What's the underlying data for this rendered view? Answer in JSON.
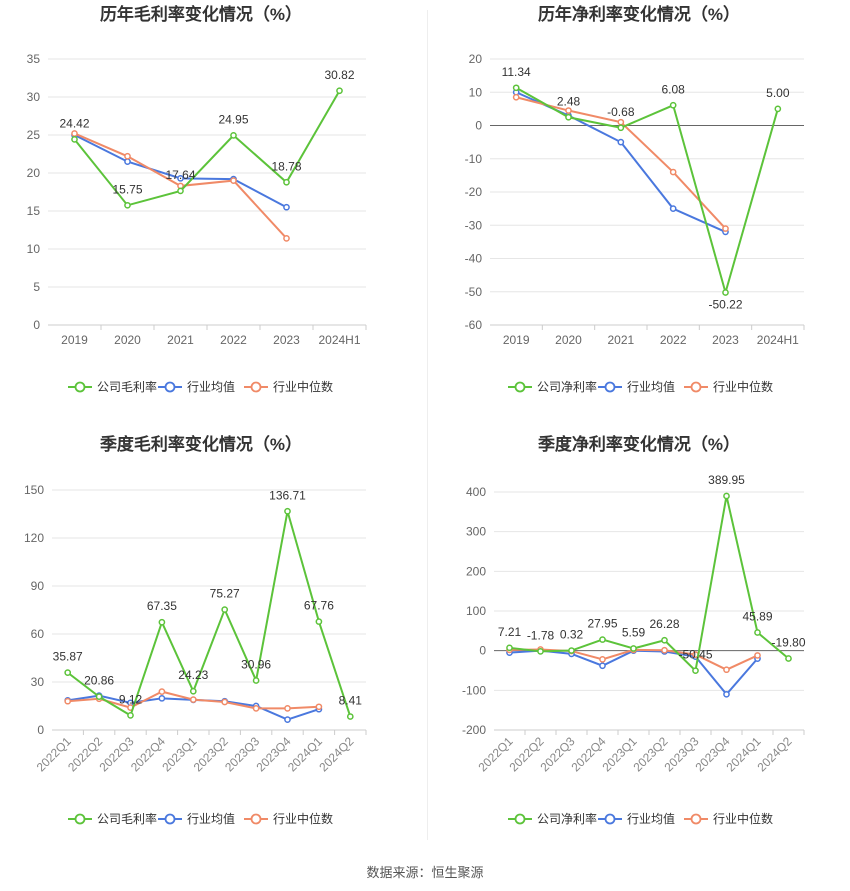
{
  "source": "数据来源：恒生聚源",
  "colors": {
    "company": "#5cc33a",
    "avg": "#4a78de",
    "median": "#f08a67"
  },
  "chart_data": [
    {
      "type": "line",
      "title": "历年毛利率变化情况（%）",
      "categories": [
        "2019",
        "2020",
        "2021",
        "2022",
        "2023",
        "2024H1"
      ],
      "ylim": [
        0,
        35
      ],
      "yticks": [
        0,
        5,
        10,
        15,
        20,
        25,
        30,
        35
      ],
      "xlabel": "",
      "ylabel": "",
      "legend_position": "bottom-center",
      "series": [
        {
          "name": "公司毛利率",
          "role": "company",
          "values": [
            24.42,
            15.75,
            17.64,
            24.95,
            18.78,
            30.82
          ],
          "labels": [
            "24.42",
            "15.75",
            "17.64",
            "24.95",
            "18.78",
            "30.82"
          ]
        },
        {
          "name": "行业均值",
          "role": "avg",
          "values": [
            25.0,
            21.5,
            19.3,
            19.2,
            15.5,
            null
          ]
        },
        {
          "name": "行业中位数",
          "role": "median",
          "values": [
            25.2,
            22.2,
            18.3,
            19.0,
            11.4,
            null
          ]
        }
      ]
    },
    {
      "type": "line",
      "title": "历年净利率变化情况（%）",
      "categories": [
        "2019",
        "2020",
        "2021",
        "2022",
        "2023",
        "2024H1"
      ],
      "ylim": [
        -60,
        20
      ],
      "yticks": [
        -60,
        -50,
        -40,
        -30,
        -20,
        -10,
        0,
        10,
        20
      ],
      "xlabel": "",
      "ylabel": "",
      "legend_position": "bottom-center",
      "series": [
        {
          "name": "公司净利率",
          "role": "company",
          "values": [
            11.34,
            2.48,
            -0.68,
            6.08,
            -50.22,
            5.0
          ],
          "labels": [
            "11.34",
            "2.48",
            "-0.68",
            "6.08",
            "-50.22",
            "5.00"
          ]
        },
        {
          "name": "行业均值",
          "role": "avg",
          "values": [
            10.0,
            3.0,
            -5.0,
            -25.0,
            -32.0,
            null
          ]
        },
        {
          "name": "行业中位数",
          "role": "median",
          "values": [
            8.5,
            4.5,
            1.0,
            -14.0,
            -31.0,
            null
          ]
        }
      ]
    },
    {
      "type": "line",
      "title": "季度毛利率变化情况（%）",
      "categories": [
        "2022Q1",
        "2022Q2",
        "2022Q3",
        "2022Q4",
        "2023Q1",
        "2023Q2",
        "2023Q3",
        "2023Q4",
        "2024Q1",
        "2024Q2"
      ],
      "ylim": [
        0,
        150
      ],
      "yticks": [
        0,
        30,
        60,
        90,
        120,
        150
      ],
      "xlabel": "",
      "ylabel": "",
      "legend_position": "bottom-center",
      "series": [
        {
          "name": "公司毛利率",
          "role": "company",
          "values": [
            35.87,
            20.86,
            9.12,
            67.35,
            24.23,
            75.27,
            30.96,
            136.71,
            67.76,
            8.41
          ],
          "labels": [
            "35.87",
            "20.86",
            "9.12",
            "67.35",
            "24.23",
            "75.27",
            "30.96",
            "136.71",
            "67.76",
            "8.41"
          ]
        },
        {
          "name": "行业均值",
          "role": "avg",
          "values": [
            18.5,
            21.5,
            17.0,
            19.8,
            18.8,
            18.0,
            15.0,
            6.5,
            13.0,
            null
          ]
        },
        {
          "name": "行业中位数",
          "role": "median",
          "values": [
            18.0,
            19.5,
            14.0,
            24.0,
            19.0,
            17.5,
            13.5,
            13.5,
            14.5,
            null
          ]
        }
      ]
    },
    {
      "type": "line",
      "title": "季度净利率变化情况（%）",
      "categories": [
        "2022Q1",
        "2022Q2",
        "2022Q3",
        "2022Q4",
        "2023Q1",
        "2023Q2",
        "2023Q3",
        "2023Q4",
        "2024Q1",
        "2024Q2"
      ],
      "ylim": [
        -200,
        400
      ],
      "yticks": [
        -200,
        -100,
        0,
        100,
        200,
        300,
        400
      ],
      "xlabel": "",
      "ylabel": "",
      "legend_position": "bottom-center",
      "series": [
        {
          "name": "公司净利率",
          "role": "company",
          "values": [
            7.21,
            -1.78,
            0.32,
            27.95,
            5.59,
            26.28,
            -50.45,
            389.95,
            45.89,
            -19.8
          ],
          "labels": [
            "7.21",
            "-1.78",
            "0.32",
            "27.95",
            "5.59",
            "26.28",
            "-50.45",
            "389.95",
            "45.89",
            "-19.80"
          ]
        },
        {
          "name": "行业均值",
          "role": "avg",
          "values": [
            -5.0,
            0.0,
            -8.0,
            -38.0,
            0.0,
            -2.0,
            -15.0,
            -110.0,
            -20.0,
            null
          ]
        },
        {
          "name": "行业中位数",
          "role": "median",
          "values": [
            2.0,
            3.0,
            -1.0,
            -22.0,
            2.0,
            1.0,
            -10.0,
            -48.0,
            -12.0,
            null
          ]
        }
      ]
    }
  ]
}
